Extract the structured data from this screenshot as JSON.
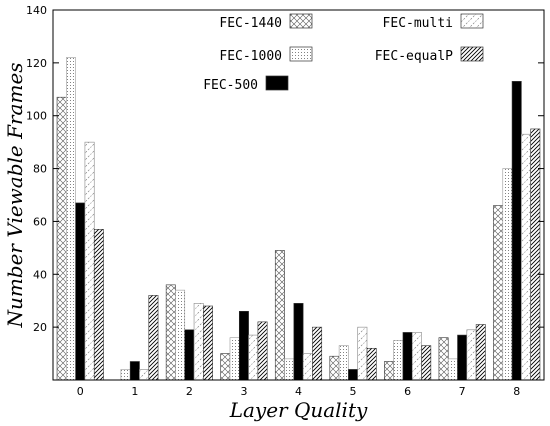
{
  "chart_data": {
    "type": "bar",
    "xlabel": "Layer Quality",
    "ylabel": "Number Viewable Frames",
    "ylim": [
      0,
      140
    ],
    "yticks": [
      20,
      40,
      60,
      80,
      100,
      120,
      140
    ],
    "categories": [
      "0",
      "1",
      "2",
      "3",
      "4",
      "5",
      "6",
      "7",
      "8"
    ],
    "grid": false,
    "legend_placement": "top",
    "series": [
      {
        "name": "FEC-1440",
        "pattern": "crosshatch",
        "values": [
          107,
          0,
          36,
          10,
          49,
          9,
          7,
          16,
          66
        ]
      },
      {
        "name": "FEC-1000",
        "pattern": "dots",
        "values": [
          122,
          4,
          34,
          16,
          8,
          13,
          15,
          8,
          80
        ]
      },
      {
        "name": "FEC-500",
        "pattern": "solid-black",
        "values": [
          67,
          7,
          19,
          26,
          29,
          4,
          18,
          17,
          113
        ]
      },
      {
        "name": "FEC-multi",
        "pattern": "sparse-diagonal",
        "values": [
          90,
          4,
          29,
          17,
          10,
          20,
          18,
          19,
          93
        ]
      },
      {
        "name": "FEC-equalP",
        "pattern": "dense-diagonal",
        "values": [
          57,
          32,
          28,
          22,
          20,
          12,
          13,
          21,
          95
        ]
      }
    ]
  }
}
